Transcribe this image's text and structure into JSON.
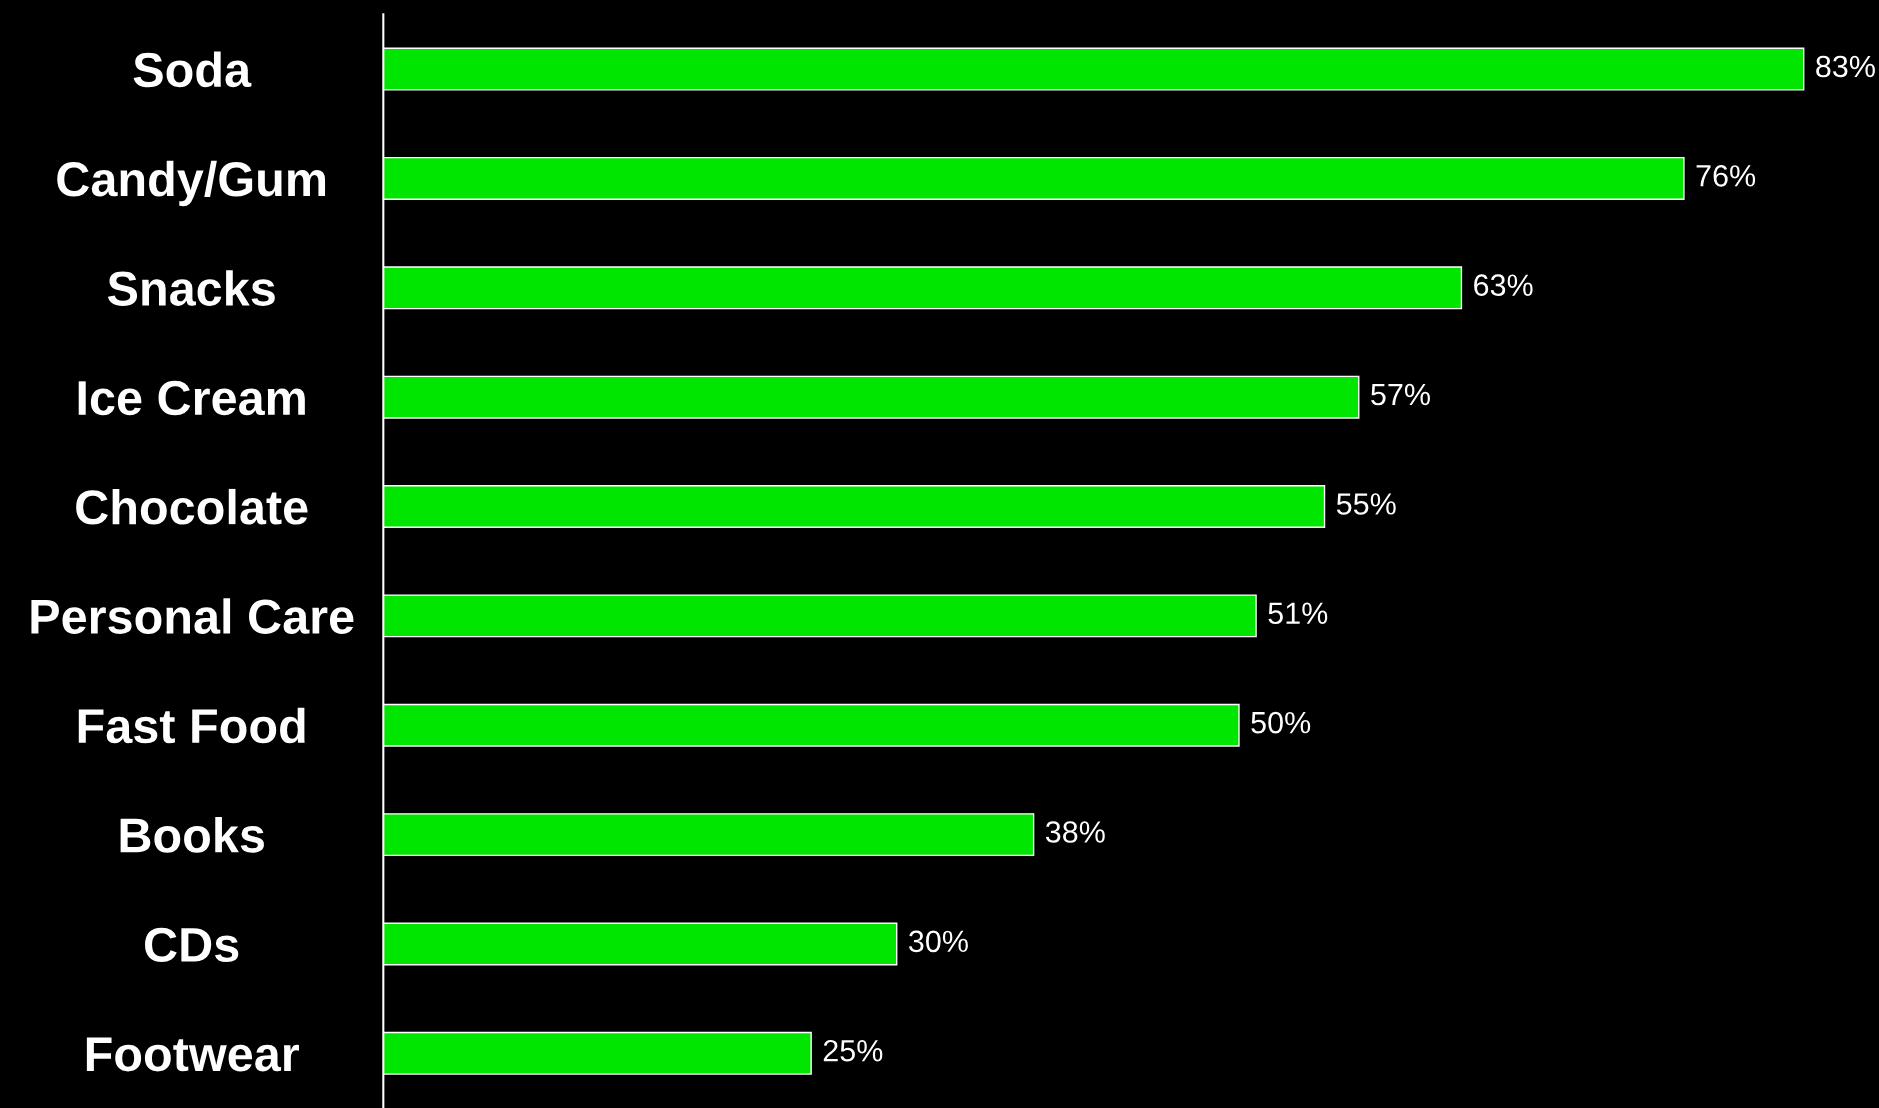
{
  "chart_data": {
    "type": "bar",
    "orientation": "horizontal",
    "categories": [
      "Soda",
      "Candy/Gum",
      "Snacks",
      "Ice Cream",
      "Chocolate",
      "Personal Care",
      "Fast Food",
      "Books",
      "CDs",
      "Footwear"
    ],
    "values": [
      83,
      76,
      63,
      57,
      55,
      51,
      50,
      38,
      30,
      25
    ],
    "value_labels": [
      "83%",
      "76%",
      "63%",
      "57%",
      "55%",
      "51%",
      "50%",
      "38%",
      "30%",
      "25%"
    ],
    "color": "#00e600",
    "grid": false,
    "legend": false
  }
}
